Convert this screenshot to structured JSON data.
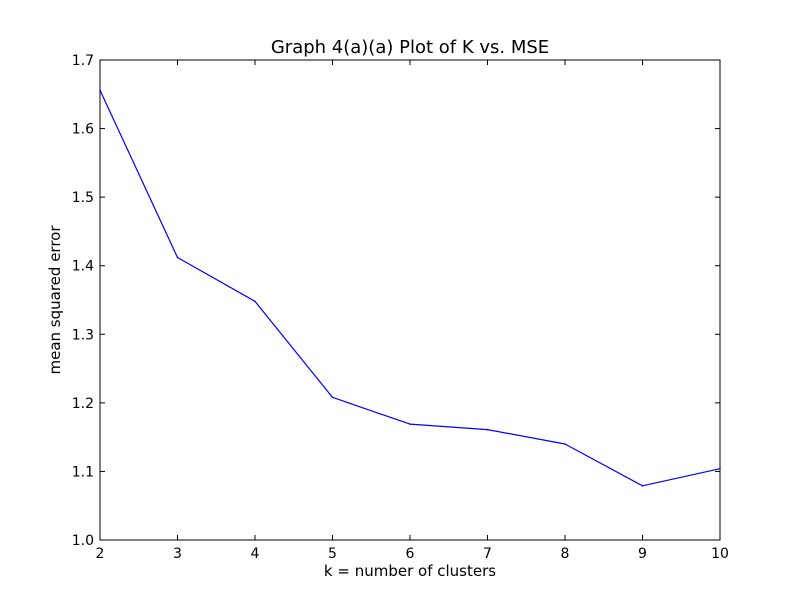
{
  "chart_data": {
    "type": "line",
    "title": "Graph 4(a)(a) Plot of K vs. MSE",
    "xlabel": "k = number of clusters",
    "ylabel": "mean squared error",
    "xlim": [
      2,
      10
    ],
    "ylim": [
      1.0,
      1.7
    ],
    "xticks": [
      2,
      3,
      4,
      5,
      6,
      7,
      8,
      9,
      10
    ],
    "yticks": [
      "1.0",
      "1.1",
      "1.2",
      "1.3",
      "1.4",
      "1.5",
      "1.6",
      "1.7"
    ],
    "grid": false,
    "legend": "none",
    "series": [
      {
        "color": "#0000ff",
        "x": [
          2,
          3,
          4,
          5,
          6,
          7,
          8,
          9,
          10
        ],
        "y": [
          1.656,
          1.412,
          1.348,
          1.208,
          1.169,
          1.161,
          1.14,
          1.079,
          1.104
        ]
      }
    ]
  }
}
